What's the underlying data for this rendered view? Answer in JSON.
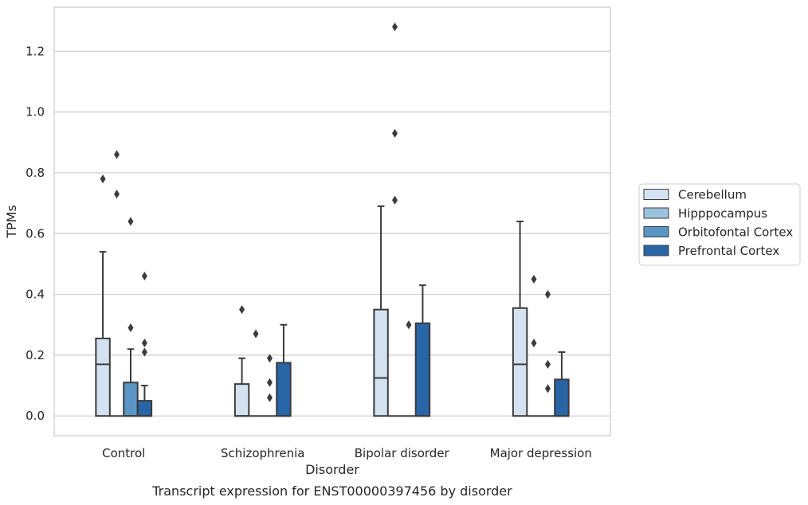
{
  "caption": "Transcript expression for ENST00000397456 by disorder",
  "chart_data": {
    "type": "box",
    "title": "",
    "xlabel": "Disorder",
    "ylabel": "TPMs",
    "ylim": [
      -0.065,
      1.345
    ],
    "yticks": [
      0.0,
      0.2,
      0.4,
      0.6,
      0.8,
      1.0,
      1.2
    ],
    "ytick_labels": [
      "0.0",
      "0.2",
      "0.4",
      "0.6",
      "0.8",
      "1.0",
      "1.2"
    ],
    "grid": "horizontal",
    "legend_position": "right",
    "categories": [
      "Control",
      "Schizophrenia",
      "Bipolar disorder",
      "Major depression"
    ],
    "series": [
      {
        "name": "Cerebellum",
        "color": "#d3e2f1",
        "boxes": [
          {
            "q1": 0.0,
            "median": 0.17,
            "q3": 0.255,
            "whisker_low": 0.0,
            "whisker_high": 0.54,
            "outliers": [
              0.78
            ]
          },
          {
            "q1": 0.0,
            "median": 0.0,
            "q3": 0.105,
            "whisker_low": 0.0,
            "whisker_high": 0.19,
            "outliers": [
              0.35
            ]
          },
          {
            "q1": 0.0,
            "median": 0.125,
            "q3": 0.35,
            "whisker_low": 0.0,
            "whisker_high": 0.69,
            "outliers": []
          },
          {
            "q1": 0.0,
            "median": 0.17,
            "q3": 0.355,
            "whisker_low": 0.0,
            "whisker_high": 0.64,
            "outliers": []
          }
        ]
      },
      {
        "name": "Hipppocampus",
        "color": "#9bc2dd",
        "boxes": [
          {
            "q1": 0.0,
            "median": 0.0,
            "q3": 0.0,
            "whisker_low": 0.0,
            "whisker_high": 0.0,
            "outliers": [
              0.86,
              0.73
            ]
          },
          {
            "q1": 0.0,
            "median": 0.0,
            "q3": 0.0,
            "whisker_low": 0.0,
            "whisker_high": 0.0,
            "outliers": [
              0.27
            ]
          },
          {
            "q1": 0.0,
            "median": 0.0,
            "q3": 0.0,
            "whisker_low": 0.0,
            "whisker_high": 0.0,
            "outliers": [
              1.28,
              0.93,
              0.71
            ]
          },
          {
            "q1": 0.0,
            "median": 0.0,
            "q3": 0.0,
            "whisker_low": 0.0,
            "whisker_high": 0.0,
            "outliers": [
              0.45,
              0.24
            ]
          }
        ]
      },
      {
        "name": "Orbitofontal Cortex",
        "color": "#5a96c5",
        "boxes": [
          {
            "q1": 0.0,
            "median": 0.0,
            "q3": 0.11,
            "whisker_low": 0.0,
            "whisker_high": 0.22,
            "outliers": [
              0.64,
              0.29
            ]
          },
          {
            "q1": 0.0,
            "median": 0.0,
            "q3": 0.0,
            "whisker_low": 0.0,
            "whisker_high": 0.0,
            "outliers": [
              0.19,
              0.11,
              0.06
            ]
          },
          {
            "q1": 0.0,
            "median": 0.0,
            "q3": 0.0,
            "whisker_low": 0.0,
            "whisker_high": 0.0,
            "outliers": [
              0.3
            ]
          },
          {
            "q1": 0.0,
            "median": 0.0,
            "q3": 0.0,
            "whisker_low": 0.0,
            "whisker_high": 0.0,
            "outliers": [
              0.4,
              0.17,
              0.09
            ]
          }
        ]
      },
      {
        "name": "Prefrontal Cortex",
        "color": "#2865a6",
        "boxes": [
          {
            "q1": 0.0,
            "median": 0.0,
            "q3": 0.05,
            "whisker_low": 0.0,
            "whisker_high": 0.1,
            "outliers": [
              0.46,
              0.24,
              0.21
            ]
          },
          {
            "q1": 0.0,
            "median": 0.0,
            "q3": 0.175,
            "whisker_low": 0.0,
            "whisker_high": 0.3,
            "outliers": []
          },
          {
            "q1": 0.0,
            "median": 0.0,
            "q3": 0.305,
            "whisker_low": 0.0,
            "whisker_high": 0.43,
            "outliers": []
          },
          {
            "q1": 0.0,
            "median": 0.0,
            "q3": 0.12,
            "whisker_low": 0.0,
            "whisker_high": 0.21,
            "outliers": []
          }
        ]
      }
    ]
  }
}
